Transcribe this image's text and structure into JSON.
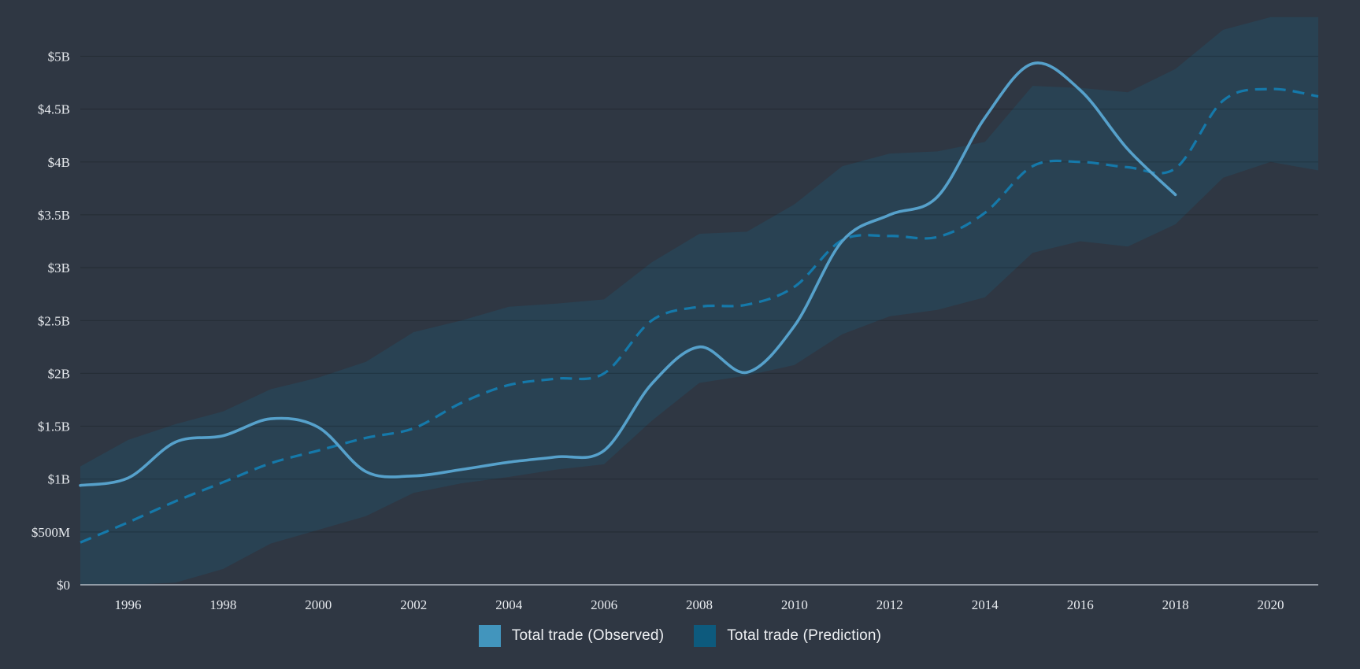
{
  "page": {
    "background": "#2f3743"
  },
  "chart_data": {
    "type": "line",
    "title": "",
    "xlabel": "",
    "ylabel": "",
    "x_range": [
      1995,
      2021
    ],
    "ylim": [
      0,
      5.5
    ],
    "grid": true,
    "legend_position": "bottom-center",
    "y_ticks": [
      {
        "value": 0.0,
        "label": "$0"
      },
      {
        "value": 0.5,
        "label": "$500M"
      },
      {
        "value": 1.0,
        "label": "$1B"
      },
      {
        "value": 1.5,
        "label": "$1.5B"
      },
      {
        "value": 2.0,
        "label": "$2B"
      },
      {
        "value": 2.5,
        "label": "$2.5B"
      },
      {
        "value": 3.0,
        "label": "$3B"
      },
      {
        "value": 3.5,
        "label": "$3.5B"
      },
      {
        "value": 4.0,
        "label": "$4B"
      },
      {
        "value": 4.5,
        "label": "$4.5B"
      },
      {
        "value": 5.0,
        "label": "$5B"
      }
    ],
    "x_ticks": [
      {
        "value": 1996,
        "label": "1996"
      },
      {
        "value": 1998,
        "label": "1998"
      },
      {
        "value": 2000,
        "label": "2000"
      },
      {
        "value": 2002,
        "label": "2002"
      },
      {
        "value": 2004,
        "label": "2004"
      },
      {
        "value": 2006,
        "label": "2006"
      },
      {
        "value": 2008,
        "label": "2008"
      },
      {
        "value": 2010,
        "label": "2010"
      },
      {
        "value": 2012,
        "label": "2012"
      },
      {
        "value": 2014,
        "label": "2014"
      },
      {
        "value": 2016,
        "label": "2016"
      },
      {
        "value": 2018,
        "label": "2018"
      },
      {
        "value": 2020,
        "label": "2020"
      }
    ],
    "series": [
      {
        "name": "Total trade (Observed)",
        "kind": "line",
        "style": "solid",
        "color": "#56a1cb",
        "width": 3.6,
        "x_start": 1995,
        "unit": "billion USD",
        "values": [
          0.94,
          1.01,
          1.35,
          1.41,
          1.57,
          1.49,
          1.07,
          1.03,
          1.09,
          1.16,
          1.21,
          1.27,
          1.9,
          2.25,
          2.01,
          2.45,
          3.25,
          3.5,
          3.67,
          4.42,
          4.93,
          4.68,
          4.12,
          3.69
        ]
      },
      {
        "name": "Total trade (Prediction)",
        "kind": "line",
        "style": "dashed",
        "color": "#1579aa",
        "width": 3.2,
        "x_start": 1995,
        "unit": "billion USD",
        "values": [
          0.4,
          0.59,
          0.79,
          0.97,
          1.15,
          1.27,
          1.39,
          1.48,
          1.72,
          1.89,
          1.95,
          2.0,
          2.5,
          2.63,
          2.65,
          2.82,
          3.26,
          3.3,
          3.29,
          3.52,
          3.96,
          4.0,
          3.95,
          3.94,
          4.58,
          4.69,
          4.62
        ]
      },
      {
        "name": "Prediction confidence band",
        "kind": "band",
        "color": "#294253",
        "x_start": 1995,
        "unit": "billion USD",
        "upper": [
          1.12,
          1.37,
          1.52,
          1.64,
          1.85,
          1.96,
          2.11,
          2.39,
          2.5,
          2.63,
          2.66,
          2.7,
          3.05,
          3.32,
          3.34,
          3.6,
          3.96,
          4.08,
          4.1,
          4.19,
          4.72,
          4.7,
          4.66,
          4.88,
          5.25,
          5.37,
          5.37
        ],
        "lower": [
          0.0,
          0.0,
          0.02,
          0.15,
          0.39,
          0.52,
          0.65,
          0.87,
          0.96,
          1.02,
          1.09,
          1.14,
          1.55,
          1.91,
          1.98,
          2.08,
          2.37,
          2.54,
          2.6,
          2.72,
          3.14,
          3.25,
          3.2,
          3.41,
          3.85,
          4.0,
          3.92
        ]
      }
    ],
    "axis_colors": {
      "grid": "rgba(0,0,0,0.18)",
      "zero_line": "#b3bac4",
      "tick_text": "#e8ebef"
    },
    "legend": [
      {
        "label": "Total trade (Observed)",
        "swatch": "#4295bd"
      },
      {
        "label": "Total trade (Prediction)",
        "swatch": "#0d5a7d"
      }
    ]
  }
}
